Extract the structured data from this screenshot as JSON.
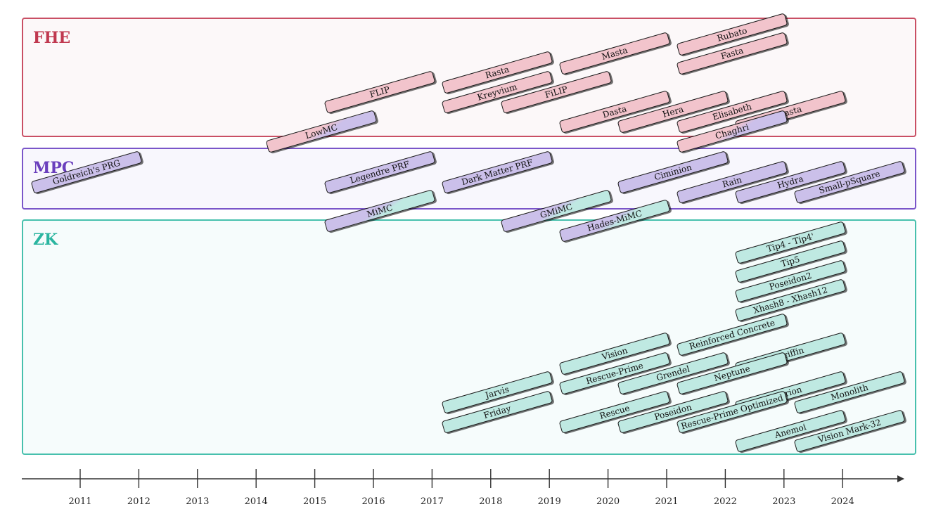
{
  "regions": [
    {
      "key": "fhe",
      "title": "FHE",
      "title_color": "#c0384f",
      "border": "#c94f64",
      "fill": "#fcf8f9"
    },
    {
      "key": "mpc",
      "title": "MPC",
      "title_color": "#6a3fbd",
      "border": "#7a55c9",
      "fill": "#f8f7fd"
    },
    {
      "key": "zk",
      "title": "ZK",
      "title_color": "#2bb5a0",
      "border": "#47c0ad",
      "fill": "#f6fcfc"
    }
  ],
  "timeline": {
    "years": [
      "2011",
      "2012",
      "2013",
      "2014",
      "2015",
      "2016",
      "2017",
      "2018",
      "2019",
      "2020",
      "2021",
      "2022",
      "2023",
      "2024"
    ]
  },
  "primitives": [
    {
      "label": "Rubato",
      "category": "fhe",
      "year": 2023,
      "row": 0
    },
    {
      "label": "Masta",
      "category": "fhe",
      "year": 2021,
      "row": 1
    },
    {
      "label": "Fasta",
      "category": "fhe",
      "year": 2023,
      "row": 1
    },
    {
      "label": "Rasta",
      "category": "fhe",
      "year": 2019,
      "row": 2
    },
    {
      "label": "FLIP",
      "category": "fhe",
      "year": 2017,
      "row": 3
    },
    {
      "label": "Kreyvium",
      "category": "fhe",
      "year": 2019,
      "row": 3
    },
    {
      "label": "FiLIP",
      "category": "fhe",
      "year": 2020,
      "row": 3
    },
    {
      "label": "Dasta",
      "category": "fhe",
      "year": 2021,
      "row": 4
    },
    {
      "label": "Hera",
      "category": "fhe",
      "year": 2022,
      "row": 4
    },
    {
      "label": "Elisabeth",
      "category": "fhe",
      "year": 2023,
      "row": 4
    },
    {
      "label": "Pasta",
      "category": "fhe",
      "year": 2024,
      "row": 4
    },
    {
      "label": "LowMC",
      "category": "fhe-mpc",
      "year": 2016,
      "row": 6
    },
    {
      "label": "Chaghri",
      "category": "fhe-mpc",
      "year": 2023,
      "row": 6
    },
    {
      "label": "Goldreich's PRG",
      "category": "mpc",
      "year": 2012,
      "row": 8
    },
    {
      "label": "Legendre PRF",
      "category": "mpc",
      "year": 2017,
      "row": 8
    },
    {
      "label": "Dark Matter PRF",
      "category": "mpc",
      "year": 2019,
      "row": 8
    },
    {
      "label": "Ciminion",
      "category": "mpc",
      "year": 2022,
      "row": 8
    },
    {
      "label": "Rain",
      "category": "mpc",
      "year": 2023,
      "row": 9
    },
    {
      "label": "Hydra",
      "category": "mpc",
      "year": 2024,
      "row": 9
    },
    {
      "label": "Small-pSquare",
      "category": "mpc",
      "year": 2025,
      "row": 9
    },
    {
      "label": "MiMC",
      "category": "mpc-zk",
      "year": 2017,
      "row": 10
    },
    {
      "label": "GMiMC",
      "category": "mpc-zk",
      "year": 2020,
      "row": 10
    },
    {
      "label": "Hades-MiMC",
      "category": "mpc-zk",
      "year": 2021,
      "row": 11
    },
    {
      "label": "Tip4 - Tip4'",
      "category": "zk",
      "year": 2024,
      "row": 13
    },
    {
      "label": "Tip5",
      "category": "zk",
      "year": 2024,
      "row": 14
    },
    {
      "label": "Poseidon2",
      "category": "zk",
      "year": 2024,
      "row": 15
    },
    {
      "label": "Xhash8 - Xhash12",
      "category": "zk",
      "year": 2024,
      "row": 16
    },
    {
      "label": "Reinforced Concrete",
      "category": "zk",
      "year": 2023,
      "row": 17
    },
    {
      "label": "Vision",
      "category": "zk",
      "year": 2021,
      "row": 18
    },
    {
      "label": "Griffin",
      "category": "zk",
      "year": 2024,
      "row": 18
    },
    {
      "label": "Rescue-Prime",
      "category": "zk",
      "year": 2021,
      "row": 19
    },
    {
      "label": "Grendel",
      "category": "zk",
      "year": 2022,
      "row": 19
    },
    {
      "label": "Neptune",
      "category": "zk",
      "year": 2023,
      "row": 19
    },
    {
      "label": "Jarvis",
      "category": "zk",
      "year": 2019,
      "row": 20
    },
    {
      "label": "Arion",
      "category": "zk",
      "year": 2024,
      "row": 20
    },
    {
      "label": "Monolith",
      "category": "zk",
      "year": 2025,
      "row": 20
    },
    {
      "label": "Friday",
      "category": "zk",
      "year": 2019,
      "row": 21
    },
    {
      "label": "Rescue",
      "category": "zk",
      "year": 2021,
      "row": 21
    },
    {
      "label": "Poseidon",
      "category": "zk",
      "year": 2022,
      "row": 21
    },
    {
      "label": "Rescue-Prime Optimized",
      "category": "zk",
      "year": 2023,
      "row": 21
    },
    {
      "label": "Anemoi",
      "category": "zk",
      "year": 2024,
      "row": 22
    },
    {
      "label": "Vision Mark-32",
      "category": "zk",
      "year": 2025,
      "row": 22
    }
  ]
}
